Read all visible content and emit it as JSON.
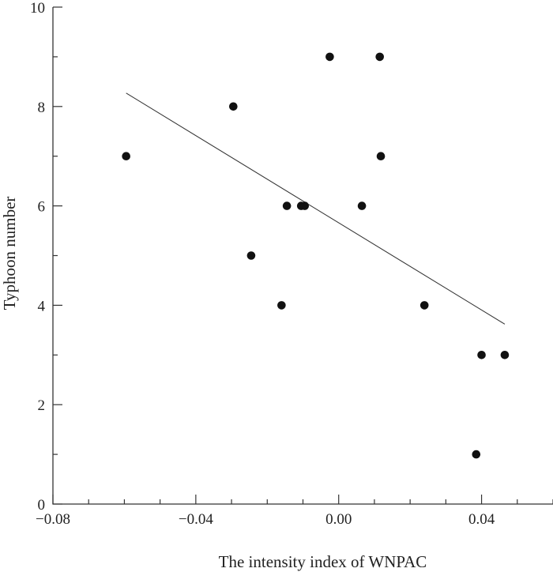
{
  "chart_data": {
    "type": "scatter",
    "title": "",
    "xlabel": "The intensity index of WNPAC",
    "ylabel": "Typhoon number",
    "xlim": [
      -0.08,
      0.06
    ],
    "ylim": [
      0,
      10
    ],
    "x_ticks": [
      -0.08,
      -0.04,
      0.0,
      0.04
    ],
    "x_tick_labels": [
      "−0.08",
      "−0.04",
      "0.00",
      "0.04"
    ],
    "y_ticks": [
      0,
      2,
      4,
      6,
      8,
      10
    ],
    "y_tick_labels": [
      "0",
      "2",
      "4",
      "6",
      "8",
      "10"
    ],
    "grid": false,
    "points": [
      {
        "x": -0.0595,
        "y": 7
      },
      {
        "x": -0.0295,
        "y": 8
      },
      {
        "x": -0.0245,
        "y": 5
      },
      {
        "x": -0.016,
        "y": 4
      },
      {
        "x": -0.0145,
        "y": 6
      },
      {
        "x": -0.0105,
        "y": 6
      },
      {
        "x": -0.0095,
        "y": 6
      },
      {
        "x": -0.0025,
        "y": 9
      },
      {
        "x": 0.0065,
        "y": 6
      },
      {
        "x": 0.0115,
        "y": 9
      },
      {
        "x": 0.0118,
        "y": 7
      },
      {
        "x": 0.024,
        "y": 4
      },
      {
        "x": 0.0385,
        "y": 1
      },
      {
        "x": 0.04,
        "y": 3
      },
      {
        "x": 0.0465,
        "y": 3
      }
    ],
    "trend_line": {
      "x": [
        -0.0595,
        0.0465
      ],
      "y": [
        8.27,
        3.62
      ]
    }
  }
}
